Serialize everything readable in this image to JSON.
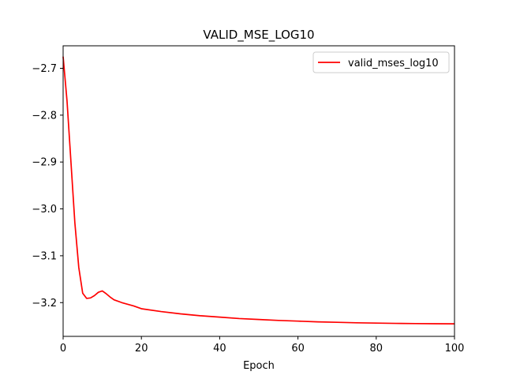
{
  "chart_data": {
    "type": "line",
    "title": "VALID_MSE_LOG10",
    "xlabel": "Epoch",
    "ylabel": "",
    "xlim": [
      0,
      100
    ],
    "ylim": [
      -3.272,
      -2.652
    ],
    "x_ticks": [
      0,
      20,
      40,
      60,
      80,
      100
    ],
    "x_tick_labels": [
      "0",
      "20",
      "40",
      "60",
      "80",
      "100"
    ],
    "y_ticks": [
      -2.7,
      -2.8,
      -2.9,
      -3.0,
      -3.1,
      -3.2
    ],
    "y_tick_labels": [
      "−2.7",
      "−2.8",
      "−2.9",
      "−3.0",
      "−3.1",
      "−3.2"
    ],
    "grid": false,
    "legend_position": "top-right",
    "series": [
      {
        "name": "valid_mses_log10",
        "color": "#ff0000",
        "x": [
          0,
          1,
          2,
          3,
          4,
          5,
          6,
          7,
          8,
          9,
          10,
          11,
          12,
          13,
          15,
          18,
          20,
          25,
          30,
          35,
          40,
          45,
          50,
          55,
          60,
          65,
          70,
          75,
          80,
          85,
          90,
          95,
          100
        ],
        "y": [
          -2.675,
          -2.77,
          -2.9,
          -3.03,
          -3.125,
          -3.18,
          -3.191,
          -3.19,
          -3.185,
          -3.178,
          -3.175,
          -3.181,
          -3.188,
          -3.194,
          -3.2,
          -3.207,
          -3.213,
          -3.219,
          -3.224,
          -3.228,
          -3.231,
          -3.234,
          -3.236,
          -3.238,
          -3.2395,
          -3.241,
          -3.242,
          -3.243,
          -3.2437,
          -3.2443,
          -3.2447,
          -3.245,
          -3.2453
        ]
      }
    ]
  }
}
